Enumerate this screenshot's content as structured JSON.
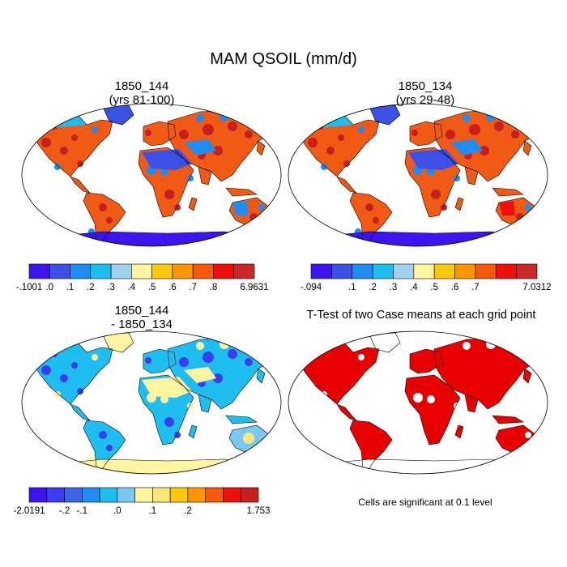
{
  "title": "MAM QSOIL (mm/d)",
  "panels": [
    {
      "id": "p1",
      "title_line1": "1850_144",
      "title_line2": "(yrs 81-100)"
    },
    {
      "id": "p2",
      "title_line1": "1850_134",
      "title_line2": "(yrs 29-48)"
    },
    {
      "id": "p3",
      "title_line1": "1850_144",
      "title_line2": "- 1850_134"
    },
    {
      "id": "p4",
      "title_line1": "T-Test of two Case means at each grid point",
      "title_line2": ""
    }
  ],
  "colorbars": [
    {
      "id": "cb1",
      "colors": [
        "#3c14f0",
        "#3c50e6",
        "#1e8cf0",
        "#1ebef0",
        "#a0d2f0",
        "#fff5a0",
        "#fac80f",
        "#fa9600",
        "#f55a0a",
        "#f00f0f",
        "#c82828"
      ],
      "labels": [
        "-.1001",
        ".0",
        ".1",
        ".2",
        ".3",
        ".4",
        ".5",
        ".6",
        ".7",
        ".8",
        "6.9631"
      ]
    },
    {
      "id": "cb2",
      "colors": [
        "#3c14f0",
        "#3c50e6",
        "#1e8cf0",
        "#1ebef0",
        "#a0d2f0",
        "#fff5a0",
        "#fac80f",
        "#fa9600",
        "#f55a0a",
        "#f00f0f",
        "#c82828"
      ],
      "labels": [
        "-.094",
        "",
        ".1",
        ".2",
        ".3",
        ".4",
        ".5",
        ".6",
        ".7",
        "",
        "7.0312"
      ]
    },
    {
      "id": "cb3",
      "colors": [
        "#3c14f0",
        "#3c3cf0",
        "#3c64e6",
        "#1e8cf0",
        "#1ebef0",
        "#78c8f0",
        "#fff5a0",
        "#fae678",
        "#fac80f",
        "#fa9600",
        "#f55a0a",
        "#f00f0f",
        "#c81e1e"
      ],
      "labels": [
        "-2.0191",
        "",
        "-.2",
        "-.1",
        "",
        ".0",
        "",
        ".1",
        "",
        ".2",
        "",
        "",
        "1.753"
      ]
    }
  ],
  "significance_note": "Cells are significant at 0.1 level",
  "map_colors": {
    "ocean": "#ffffff",
    "outline": "#000000",
    "significant": "#e80000"
  }
}
